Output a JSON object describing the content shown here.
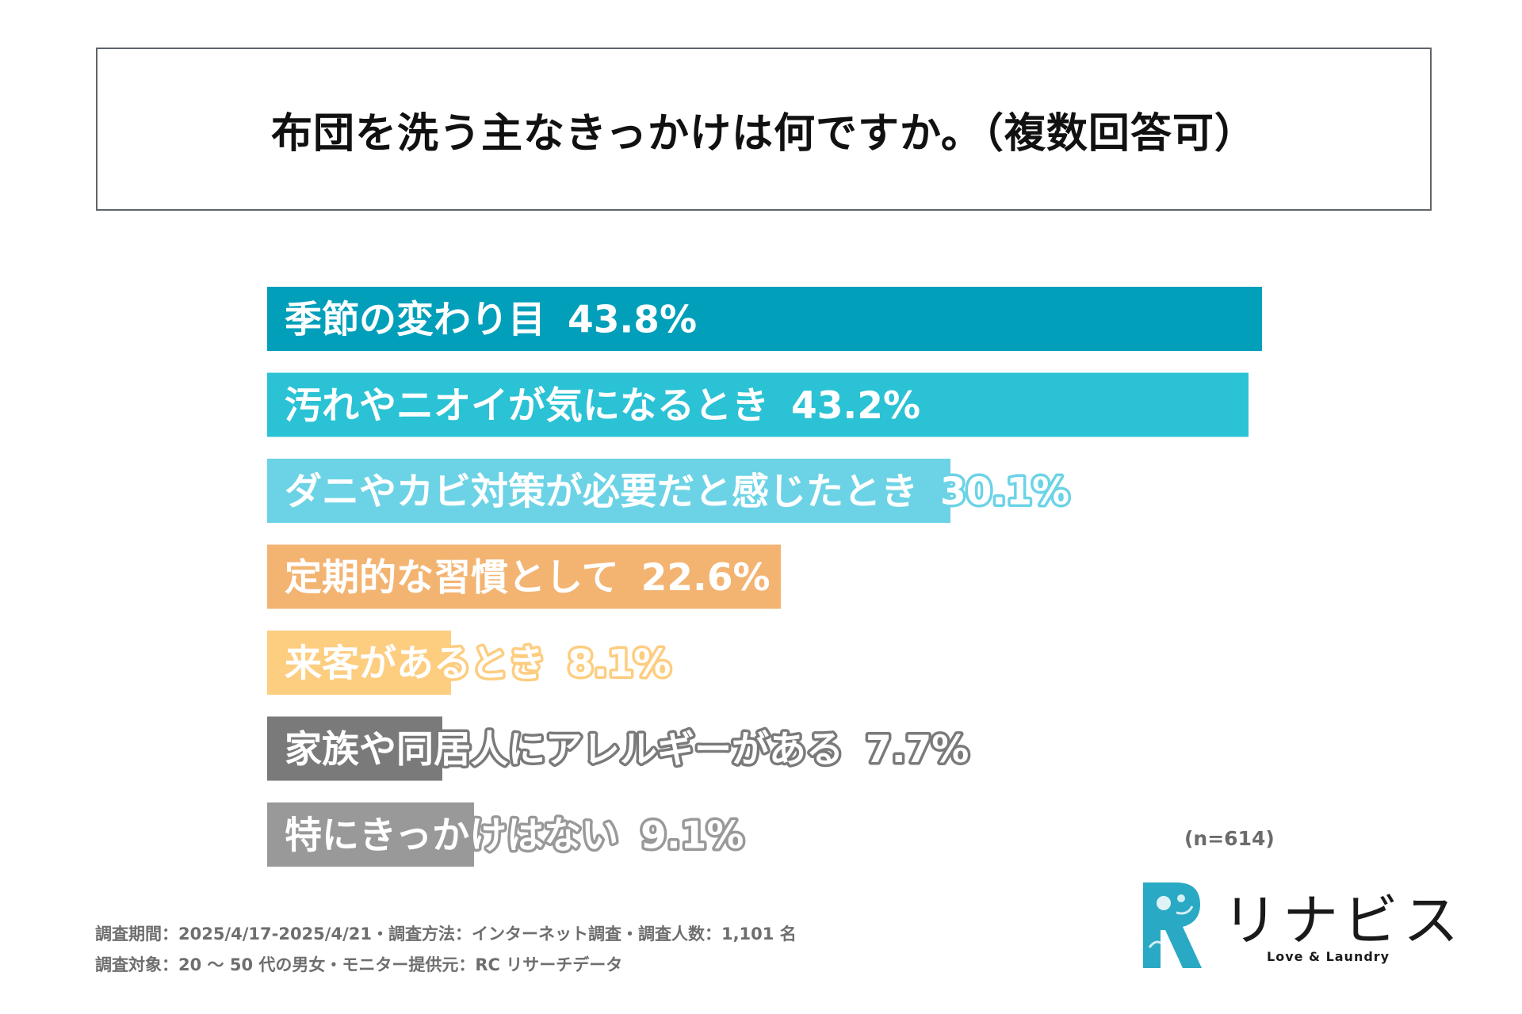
{
  "title": "布団を洗う主なきっかけは何ですか。（複数回答可）",
  "chart_data": {
    "type": "bar",
    "orientation": "horizontal",
    "title": "布団を洗う主なきっかけは何ですか。（複数回答可）",
    "categories": [
      "季節の変わり目",
      "汚れやニオイが気になるとき",
      "ダニやカビ対策が必要だと感じたとき",
      "定期的な習慣として",
      "来客があるとき",
      "家族や同居人にアレルギーがある",
      "特にきっかけはない"
    ],
    "values": [
      43.8,
      43.2,
      30.1,
      22.6,
      8.1,
      7.7,
      9.1
    ],
    "value_labels": [
      "43.8%",
      "43.2%",
      "30.1%",
      "22.6%",
      "8.1%",
      "7.7%",
      "9.1%"
    ],
    "colors": [
      "#019fba",
      "#2bc2d5",
      "#6cd3e6",
      "#f3b472",
      "#fdcd80",
      "#7a7a7a",
      "#999999"
    ],
    "unit": "%",
    "xlim": [
      0,
      43.8
    ],
    "sample_note": "(n=614)"
  },
  "notes": {
    "line1": "調査期間：2025/4/17-2025/4/21・調査方法：インターネット調査・調査人数：1,101 名",
    "line2": "調査対象：20 〜 50 代の男女・モニター提供元：RC リサーチデータ"
  },
  "logo": {
    "brand": "リナビス",
    "tagline": "Love & Laundry",
    "mark_color": "#2aa9c4"
  }
}
